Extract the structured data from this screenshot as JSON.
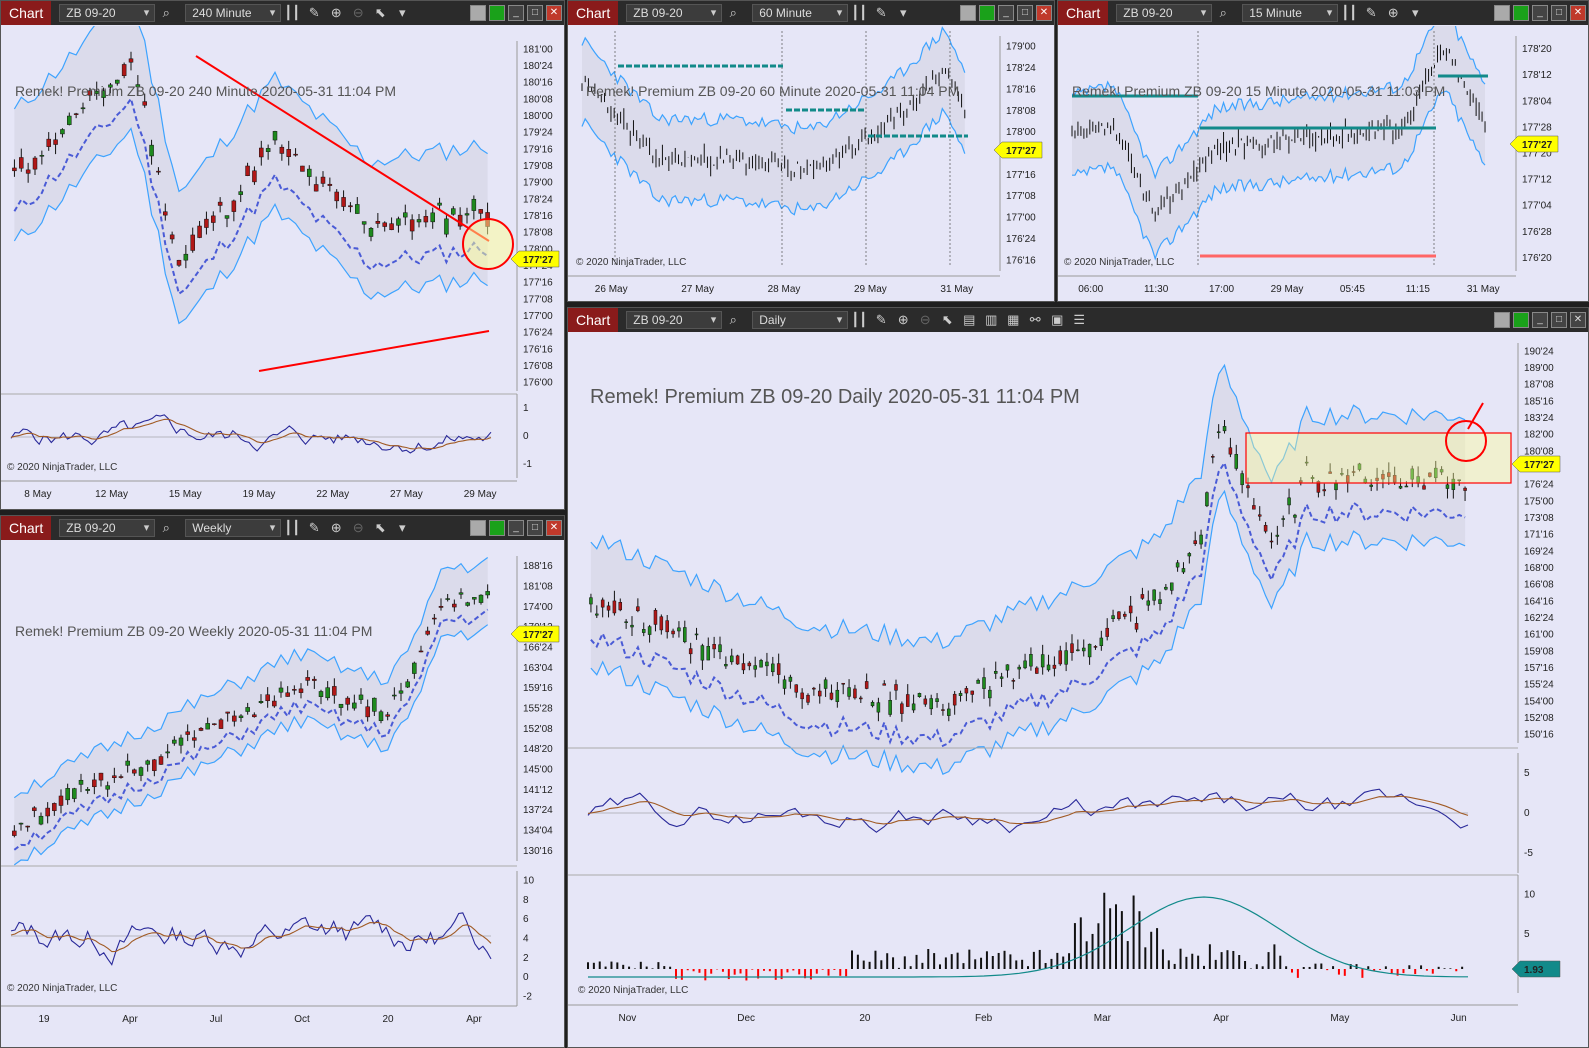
{
  "app": {
    "chart_tab": "Chart",
    "copyright": "© 2020 NinjaTrader, LLC"
  },
  "colors": {
    "up": "#1e8a1e",
    "down": "#b01717",
    "band": "#3da3ff",
    "mid_dash": "#4a5bd6",
    "red_dash": "#e2233a",
    "yellow": "#ffff00",
    "magenta": "#ff20ff",
    "teal": "#128a8a",
    "price_tag": "#ffff00",
    "oscillator": "#2a2a9a",
    "signal": "#a05a24",
    "histo_up": "#111111",
    "histo_dn": "#ff0000",
    "panel_bg": "#e6e6f7"
  },
  "windows": [
    {
      "id": "w240",
      "instrument": "ZB 09-20",
      "interval": "240 Minute",
      "watermark": "Remek!  Premium  ZB 09-20  240 Minute  2020-05-31 11:04 PM",
      "price_label": "177'27",
      "y_ticks": [
        "181'00",
        "180'24",
        "180'16",
        "180'08",
        "180'00",
        "179'24",
        "179'16",
        "179'08",
        "179'00",
        "178'24",
        "178'16",
        "178'08",
        "178'00",
        "177'24",
        "177'16",
        "177'08",
        "177'00",
        "176'24",
        "176'16",
        "176'08",
        "176'00"
      ],
      "osc_ticks": [
        "1",
        "0",
        "-1"
      ],
      "x_ticks": [
        "8 May",
        "12 May",
        "15 May",
        "19 May",
        "22 May",
        "27 May",
        "29 May"
      ]
    },
    {
      "id": "w60",
      "instrument": "ZB 09-20",
      "interval": "60 Minute",
      "watermark": "Remek!  Premium  ZB 09-20  60 Minute  2020-05-31 11:04 PM",
      "price_label": "177'27",
      "y_ticks": [
        "179'00",
        "178'24",
        "178'16",
        "178'08",
        "178'00",
        "177'24",
        "177'16",
        "177'08",
        "177'00",
        "176'24",
        "176'16"
      ],
      "x_ticks": [
        "26 May",
        "27 May",
        "28 May",
        "29 May",
        "31 May"
      ]
    },
    {
      "id": "w15",
      "instrument": "ZB 09-20",
      "interval": "15 Minute",
      "watermark": "Remek!  Premium  ZB 09-20  15 Minute  2020-05-31 11:03 PM",
      "price_label": "177'27",
      "y_ticks": [
        "178'20",
        "178'12",
        "178'04",
        "177'28",
        "177'20",
        "177'12",
        "177'04",
        "176'28",
        "176'20"
      ],
      "x_ticks": [
        "06:00",
        "11:30",
        "17:00",
        "29 May",
        "05:45",
        "11:15",
        "31 May"
      ]
    },
    {
      "id": "wW",
      "instrument": "ZB 09-20",
      "interval": "Weekly",
      "watermark": "Remek!  Premium  ZB 09-20  Weekly  2020-05-31 11:04 PM",
      "price_label": "177'27",
      "y_ticks": [
        "188'16",
        "181'08",
        "174'00",
        "170'12",
        "166'24",
        "163'04",
        "159'16",
        "155'28",
        "152'08",
        "148'20",
        "145'00",
        "141'12",
        "137'24",
        "134'04",
        "130'16"
      ],
      "osc_ticks": [
        "10",
        "8",
        "6",
        "4",
        "2",
        "0",
        "-2"
      ],
      "x_ticks": [
        "19",
        "Apr",
        "Jul",
        "Oct",
        "20",
        "Apr"
      ]
    },
    {
      "id": "wD",
      "instrument": "ZB 09-20",
      "interval": "Daily",
      "watermark": "Remek!  Premium  ZB 09-20  Daily  2020-05-31 11:04 PM",
      "price_label": "177'27",
      "histo_label": "1.93",
      "y_ticks": [
        "190'24",
        "189'00",
        "187'08",
        "185'16",
        "183'24",
        "182'00",
        "180'08",
        "178'16",
        "176'24",
        "175'00",
        "173'08",
        "171'16",
        "169'24",
        "168'00",
        "166'08",
        "164'16",
        "162'24",
        "161'00",
        "159'08",
        "157'16",
        "155'24",
        "154'00",
        "152'08",
        "150'16"
      ],
      "osc_ticks": [
        "5",
        "0",
        "-5"
      ],
      "histo_ticks": [
        "10",
        "5",
        "0"
      ],
      "x_ticks": [
        "Nov",
        "Dec",
        "20",
        "Feb",
        "Mar",
        "Apr",
        "May",
        "Jun"
      ]
    }
  ]
}
